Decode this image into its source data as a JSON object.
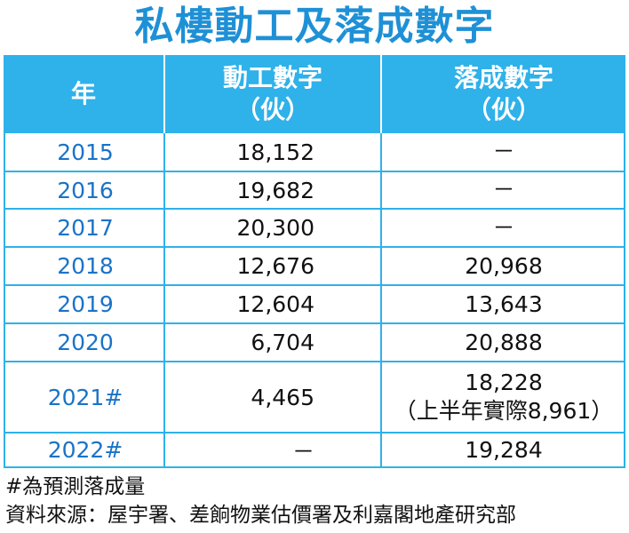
{
  "title": "私樓動工及落成數字",
  "table": {
    "headers": {
      "year": "年",
      "start_line1": "動工數字",
      "start_line2": "（伙）",
      "done_line1": "落成數字",
      "done_line2": "（伙）"
    },
    "rows": [
      {
        "year": "2015",
        "start": "18,152",
        "done": "－",
        "done_note": ""
      },
      {
        "year": "2016",
        "start": "19,682",
        "done": "－",
        "done_note": ""
      },
      {
        "year": "2017",
        "start": "20,300",
        "done": "－",
        "done_note": ""
      },
      {
        "year": "2018",
        "start": "12,676",
        "done": "20,968",
        "done_note": ""
      },
      {
        "year": "2019",
        "start": "12,604",
        "done": "13,643",
        "done_note": ""
      },
      {
        "year": "2020",
        "start": "6,704",
        "done": "20,888",
        "done_note": ""
      },
      {
        "year": "2021#",
        "start": "4,465",
        "done": "18,228",
        "done_note": "（上半年實際8,961）"
      },
      {
        "year": "2022#",
        "start": "－",
        "done": "19,284",
        "done_note": ""
      }
    ]
  },
  "notes": {
    "forecast": "#為預測落成量",
    "source": "資料來源：屋宇署、差餉物業估價署及利嘉閣地產研究部"
  },
  "colors": {
    "accent": "#2fb1ea",
    "title": "#1e90d6",
    "year_text": "#1a73c8"
  }
}
